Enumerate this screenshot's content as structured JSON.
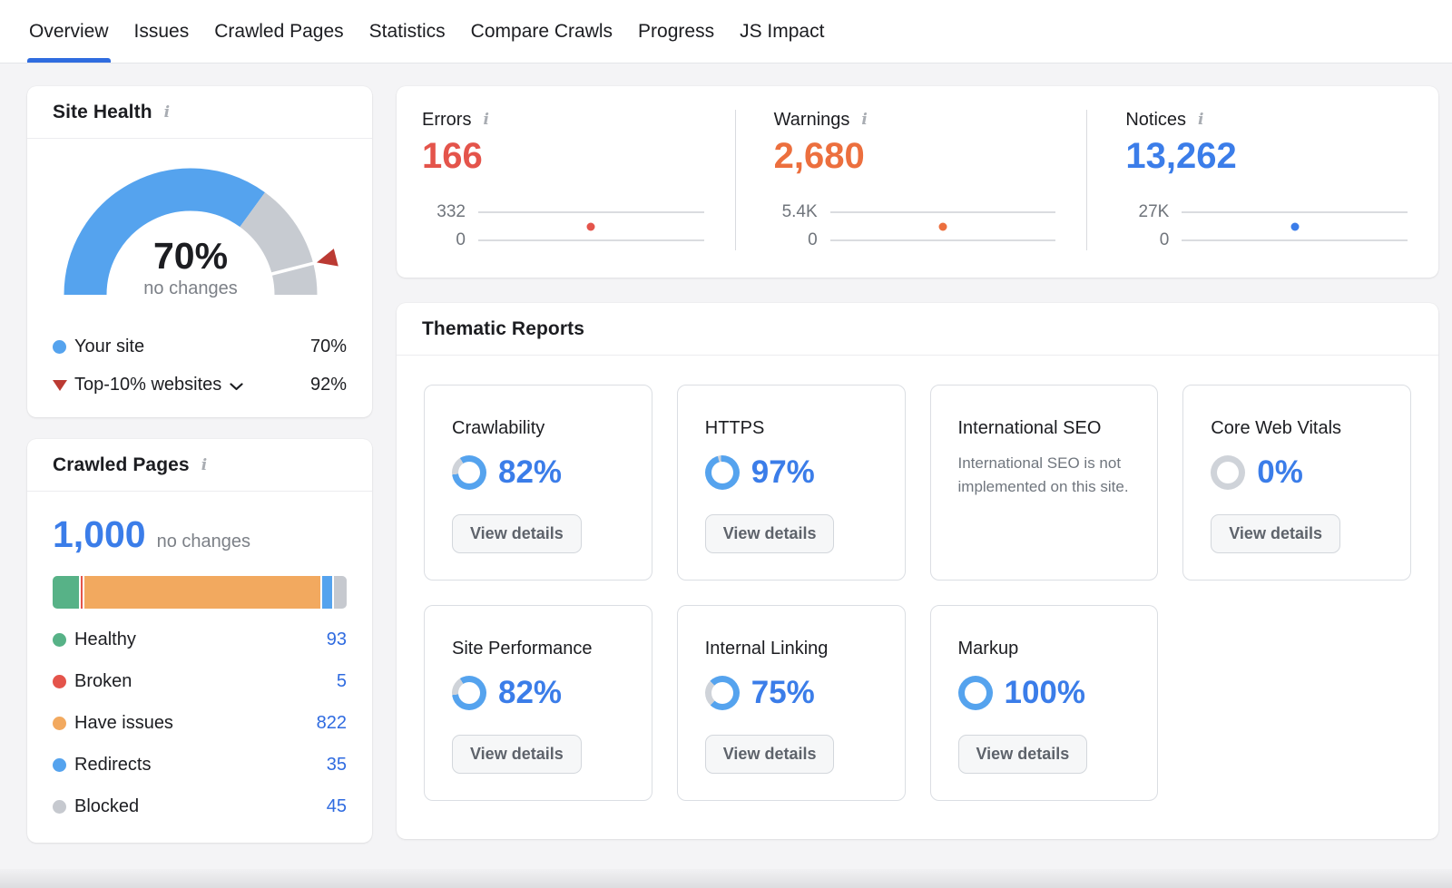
{
  "icons": {
    "info": "i"
  },
  "nav": {
    "tabs": [
      {
        "label": "Overview",
        "active": true
      },
      {
        "label": "Issues",
        "active": false
      },
      {
        "label": "Crawled Pages",
        "active": false
      },
      {
        "label": "Statistics",
        "active": false
      },
      {
        "label": "Compare Crawls",
        "active": false
      },
      {
        "label": "Progress",
        "active": false
      },
      {
        "label": "JS Impact",
        "active": false
      }
    ]
  },
  "site_health": {
    "title": "Site Health",
    "score_label": "70%",
    "score_sub": "no changes",
    "gauge": {
      "percent": 70,
      "benchmark_percent": 92,
      "fill_color": "#55a3ee",
      "track_color": "#c7cbd1",
      "marker_color": "#bb3a33"
    },
    "legend": [
      {
        "label": "Your site",
        "value": "70%",
        "marker": "dot",
        "marker_color": "#55a3ee"
      },
      {
        "label": "Top-10% websites",
        "value": "92%",
        "marker": "triangle-down",
        "marker_color": "#bb3a33",
        "dropdown": true
      }
    ]
  },
  "crawled_pages": {
    "title": "Crawled Pages",
    "total": "1,000",
    "total_sub": "no changes",
    "segments": [
      {
        "label": "Healthy",
        "value": 93,
        "value_label": "93",
        "color": "#57b287"
      },
      {
        "label": "Broken",
        "value": 5,
        "value_label": "5",
        "color": "#e4544b"
      },
      {
        "label": "Have issues",
        "value": 822,
        "value_label": "822",
        "color": "#f2a95f"
      },
      {
        "label": "Redirects",
        "value": 35,
        "value_label": "35",
        "color": "#55a3ee"
      },
      {
        "label": "Blocked",
        "value": 45,
        "value_label": "45",
        "color": "#c6c9cf"
      }
    ]
  },
  "issues_summary": {
    "items": [
      {
        "label": "Errors",
        "value": "166",
        "color": "#e4544b",
        "axis_max": "332",
        "axis_min": "0",
        "dot_x": 0.5,
        "dot_y": 0.5
      },
      {
        "label": "Warnings",
        "value": "2,680",
        "color": "#ec6f3e",
        "axis_max": "5.4K",
        "axis_min": "0",
        "dot_x": 0.5,
        "dot_y": 0.5
      },
      {
        "label": "Notices",
        "value": "13,262",
        "color": "#3b7de9",
        "axis_max": "27K",
        "axis_min": "0",
        "dot_x": 0.5,
        "dot_y": 0.5
      }
    ]
  },
  "thematic_reports": {
    "title": "Thematic Reports",
    "donut_fill": "#55a3ee",
    "donut_track": "#cfd3d9",
    "cards": [
      {
        "title": "Crawlability",
        "percent": 82,
        "percent_label": "82%",
        "button": "View details"
      },
      {
        "title": "HTTPS",
        "percent": 97,
        "percent_label": "97%",
        "button": "View details"
      },
      {
        "title": "International SEO",
        "message": "International SEO is not implemented on this site."
      },
      {
        "title": "Core Web Vitals",
        "percent": 0,
        "percent_label": "0%",
        "button": "View details"
      },
      {
        "title": "Site Performance",
        "percent": 82,
        "percent_label": "82%",
        "button": "View details"
      },
      {
        "title": "Internal Linking",
        "percent": 75,
        "percent_label": "75%",
        "button": "View details"
      },
      {
        "title": "Markup",
        "percent": 100,
        "percent_label": "100%",
        "button": "View details"
      }
    ]
  },
  "chart_data": [
    {
      "type": "gauge",
      "title": "Site Health",
      "value": 70,
      "unit": "%",
      "range": [
        0,
        100
      ],
      "annotation": "no changes",
      "benchmark": {
        "label": "Top-10% websites",
        "value": 92
      }
    },
    {
      "type": "bar",
      "style": "stacked-horizontal",
      "title": "Crawled Pages",
      "total": 1000,
      "annotation": "no changes",
      "categories": [
        "Healthy",
        "Broken",
        "Have issues",
        "Redirects",
        "Blocked"
      ],
      "values": [
        93,
        5,
        822,
        35,
        45
      ]
    },
    {
      "type": "line",
      "title": "Errors",
      "values": [
        166
      ],
      "ylim": [
        0,
        332
      ],
      "tick_labels": [
        "332",
        "0"
      ]
    },
    {
      "type": "line",
      "title": "Warnings",
      "values": [
        2680
      ],
      "ylim": [
        0,
        5400
      ],
      "tick_labels": [
        "5.4K",
        "0"
      ]
    },
    {
      "type": "line",
      "title": "Notices",
      "values": [
        13262
      ],
      "ylim": [
        0,
        27000
      ],
      "tick_labels": [
        "27K",
        "0"
      ]
    },
    {
      "type": "donut-set",
      "title": "Thematic Reports",
      "unit": "%",
      "categories": [
        "Crawlability",
        "HTTPS",
        "Core Web Vitals",
        "Site Performance",
        "Internal Linking",
        "Markup"
      ],
      "values": [
        82,
        97,
        0,
        82,
        75,
        100
      ]
    }
  ]
}
